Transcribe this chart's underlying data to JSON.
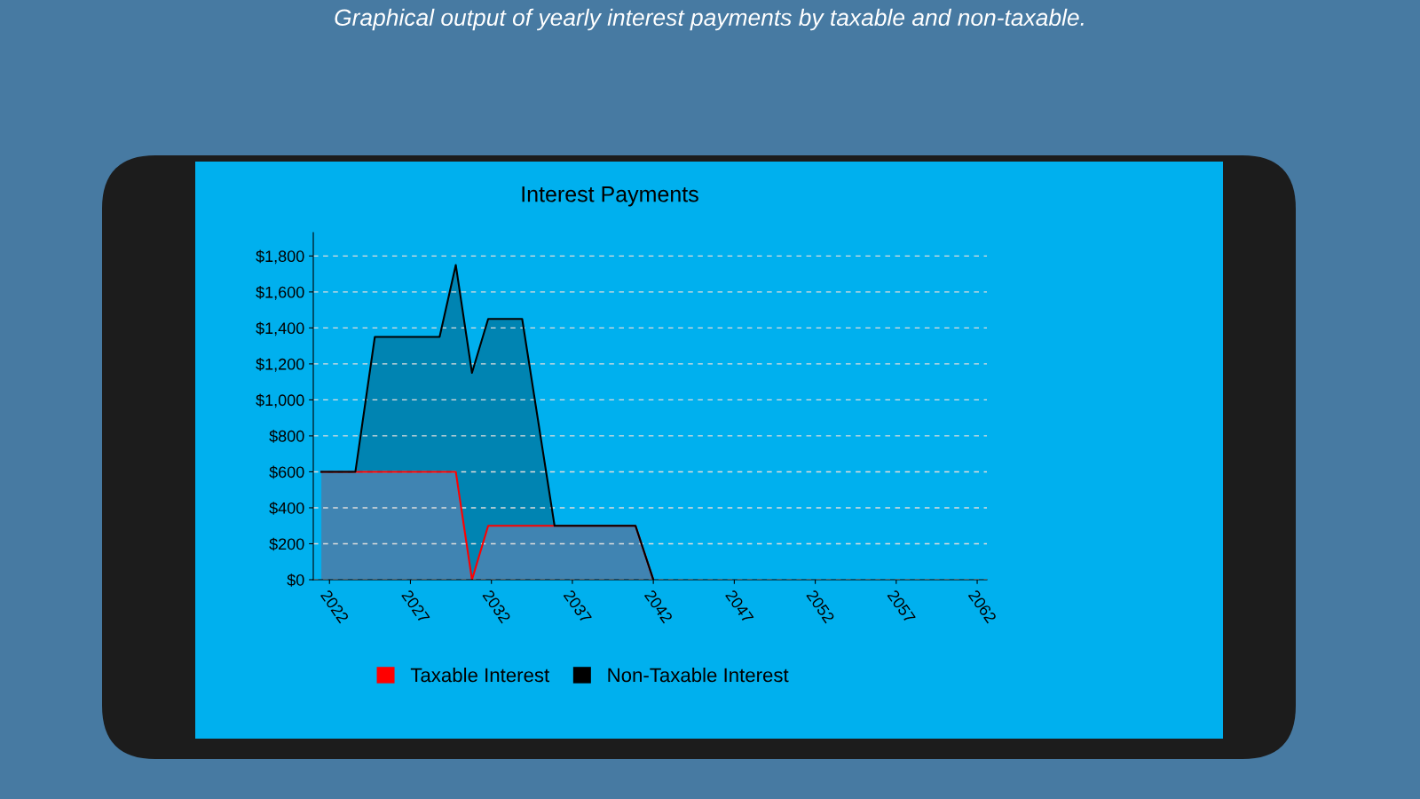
{
  "chart_data": {
    "type": "area",
    "title": "Interest Payments",
    "annotations": [
      "Graphical output of yearly interest payments by taxable and non-taxable."
    ],
    "x": [
      2021.5,
      2023.6,
      2024.8,
      2028.8,
      2029.8,
      2030.8,
      2031.8,
      2033.9,
      2035.9,
      2040.9,
      2042.0
    ],
    "stacked": true,
    "series": [
      {
        "name": "Taxable Interest",
        "color": "#ff0000",
        "values": [
          600,
          600,
          600,
          600,
          600,
          0,
          300,
          300,
          300,
          300,
          0
        ]
      },
      {
        "name": "Non-Taxable Interest",
        "color": "#000000",
        "values": [
          0,
          0,
          750,
          750,
          1150,
          1150,
          1150,
          1150,
          0,
          0,
          0
        ]
      }
    ],
    "xlim": [
      2021,
      2062.6
    ],
    "xticks": [
      2022,
      2027,
      2032,
      2037,
      2042,
      2047,
      2052,
      2057,
      2062
    ],
    "ylim": [
      0,
      1930
    ],
    "yticks": [
      {
        "value": 0,
        "label": "$0"
      },
      {
        "value": 200,
        "label": "$200"
      },
      {
        "value": 400,
        "label": "$400"
      },
      {
        "value": 600,
        "label": "$600"
      },
      {
        "value": 800,
        "label": "$800"
      },
      {
        "value": 1000,
        "label": "$1,000"
      },
      {
        "value": 1200,
        "label": "$1,200"
      },
      {
        "value": 1400,
        "label": "$1,400"
      },
      {
        "value": 1600,
        "label": "$1,600"
      },
      {
        "value": 1800,
        "label": "$1,800"
      }
    ],
    "grid": "y",
    "legend": "bottom"
  }
}
